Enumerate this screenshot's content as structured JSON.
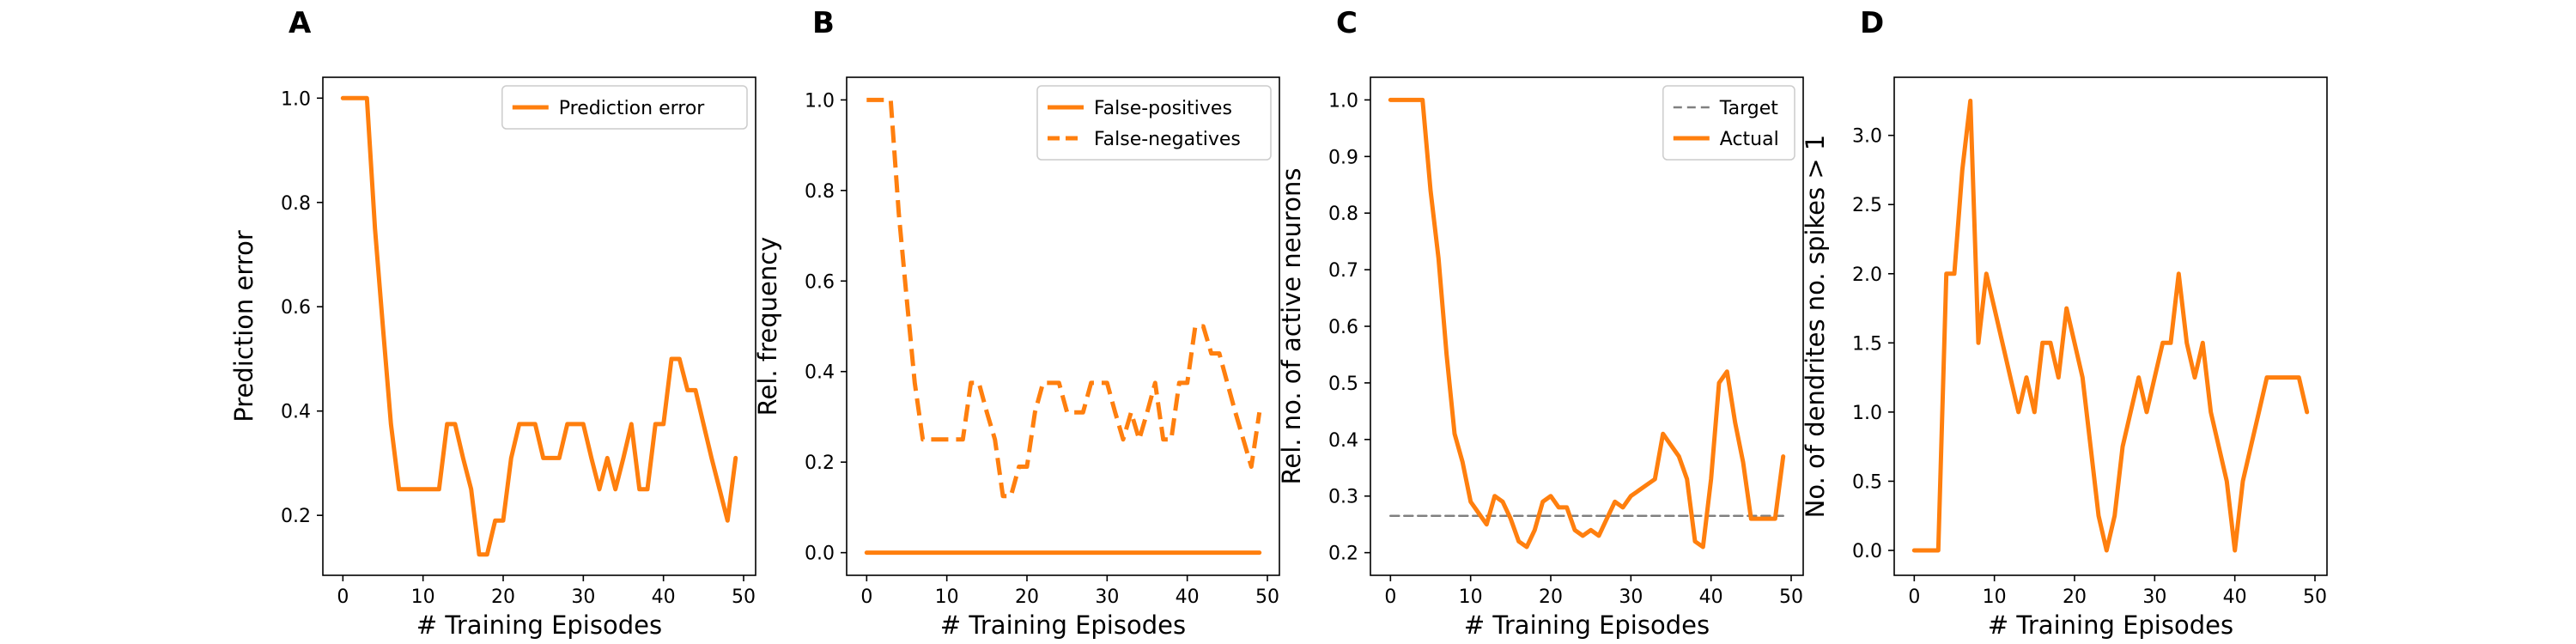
{
  "colors": {
    "series": "#ff7f0e",
    "target": "#808080",
    "axis": "#000000",
    "legend_border": "#cccccc"
  },
  "chart_data": [
    {
      "panel": "A",
      "type": "line",
      "xlabel": "# Training Episodes",
      "ylabel": "Prediction error",
      "xlim": [
        -2.5,
        51.5
      ],
      "ylim": [
        0.085,
        1.04
      ],
      "xticks": [
        0,
        10,
        20,
        30,
        40,
        50
      ],
      "yticks": [
        0.2,
        0.4,
        0.6,
        0.8,
        1.0
      ],
      "ytick_format": 1,
      "legend": "top-right",
      "series": [
        {
          "name": "Prediction error",
          "style": "solid",
          "x": [
            0,
            1,
            2,
            3,
            4,
            5,
            6,
            7,
            8,
            9,
            10,
            11,
            12,
            13,
            14,
            15,
            16,
            17,
            18,
            19,
            20,
            21,
            22,
            23,
            24,
            25,
            26,
            27,
            28,
            29,
            30,
            31,
            32,
            33,
            34,
            35,
            36,
            37,
            38,
            39,
            40,
            41,
            42,
            43,
            44,
            45,
            46,
            47,
            48,
            49
          ],
          "values": [
            1.0,
            1.0,
            1.0,
            1.0,
            0.75,
            0.56,
            0.375,
            0.25,
            0.25,
            0.25,
            0.25,
            0.25,
            0.25,
            0.375,
            0.375,
            0.31,
            0.25,
            0.125,
            0.125,
            0.19,
            0.19,
            0.31,
            0.375,
            0.375,
            0.375,
            0.31,
            0.31,
            0.31,
            0.375,
            0.375,
            0.375,
            0.31,
            0.25,
            0.31,
            0.25,
            0.31,
            0.375,
            0.25,
            0.25,
            0.375,
            0.375,
            0.5,
            0.5,
            0.44,
            0.44,
            0.375,
            0.31,
            0.25,
            0.19,
            0.31
          ]
        }
      ]
    },
    {
      "panel": "B",
      "type": "line",
      "xlabel": "# Training Episodes",
      "ylabel": "Rel. frequency",
      "xlim": [
        -2.5,
        51.5
      ],
      "ylim": [
        -0.05,
        1.05
      ],
      "xticks": [
        0,
        10,
        20,
        30,
        40,
        50
      ],
      "yticks": [
        0.0,
        0.2,
        0.4,
        0.6,
        0.8,
        1.0
      ],
      "ytick_format": 1,
      "legend": "top-right",
      "series": [
        {
          "name": "False-positives",
          "style": "solid",
          "x": [
            0,
            1,
            2,
            3,
            4,
            5,
            6,
            7,
            8,
            9,
            10,
            11,
            12,
            13,
            14,
            15,
            16,
            17,
            18,
            19,
            20,
            21,
            22,
            23,
            24,
            25,
            26,
            27,
            28,
            29,
            30,
            31,
            32,
            33,
            34,
            35,
            36,
            37,
            38,
            39,
            40,
            41,
            42,
            43,
            44,
            45,
            46,
            47,
            48,
            49
          ],
          "values": [
            0,
            0,
            0,
            0,
            0,
            0,
            0,
            0,
            0,
            0,
            0,
            0,
            0,
            0,
            0,
            0,
            0,
            0,
            0,
            0,
            0,
            0,
            0,
            0,
            0,
            0,
            0,
            0,
            0,
            0,
            0,
            0,
            0,
            0,
            0,
            0,
            0,
            0,
            0,
            0,
            0,
            0,
            0,
            0,
            0,
            0,
            0,
            0,
            0,
            0
          ]
        },
        {
          "name": "False-negatives",
          "style": "dashed",
          "x": [
            0,
            1,
            2,
            3,
            4,
            5,
            6,
            7,
            8,
            9,
            10,
            11,
            12,
            13,
            14,
            15,
            16,
            17,
            18,
            19,
            20,
            21,
            22,
            23,
            24,
            25,
            26,
            27,
            28,
            29,
            30,
            31,
            32,
            33,
            34,
            35,
            36,
            37,
            38,
            39,
            40,
            41,
            42,
            43,
            44,
            45,
            46,
            47,
            48,
            49
          ],
          "values": [
            1.0,
            1.0,
            1.0,
            1.0,
            0.75,
            0.56,
            0.375,
            0.25,
            0.25,
            0.25,
            0.25,
            0.25,
            0.25,
            0.375,
            0.375,
            0.31,
            0.25,
            0.125,
            0.125,
            0.19,
            0.19,
            0.31,
            0.375,
            0.375,
            0.375,
            0.31,
            0.31,
            0.31,
            0.375,
            0.375,
            0.375,
            0.31,
            0.25,
            0.31,
            0.25,
            0.31,
            0.375,
            0.25,
            0.25,
            0.375,
            0.375,
            0.5,
            0.5,
            0.44,
            0.44,
            0.375,
            0.31,
            0.25,
            0.19,
            0.31
          ]
        }
      ]
    },
    {
      "panel": "C",
      "type": "line",
      "xlabel": "# Training Episodes",
      "ylabel": "Rel. no. of active neurons",
      "xlim": [
        -2.5,
        51.5
      ],
      "ylim": [
        0.16,
        1.04
      ],
      "xticks": [
        0,
        10,
        20,
        30,
        40,
        50
      ],
      "yticks": [
        0.2,
        0.3,
        0.4,
        0.5,
        0.6,
        0.7,
        0.8,
        0.9,
        1.0
      ],
      "ytick_format": 1,
      "legend": "top-right",
      "series": [
        {
          "name": "Target",
          "style": "dashed-thin",
          "x": [
            0,
            49
          ],
          "values": [
            0.265,
            0.265
          ]
        },
        {
          "name": "Actual",
          "style": "solid",
          "x": [
            0,
            1,
            2,
            3,
            4,
            5,
            6,
            7,
            8,
            9,
            10,
            11,
            12,
            13,
            14,
            15,
            16,
            17,
            18,
            19,
            20,
            21,
            22,
            23,
            24,
            25,
            26,
            27,
            28,
            29,
            30,
            31,
            32,
            33,
            34,
            35,
            36,
            37,
            38,
            39,
            40,
            41,
            42,
            43,
            44,
            45,
            46,
            47,
            48,
            49
          ],
          "values": [
            1.0,
            1.0,
            1.0,
            1.0,
            1.0,
            0.84,
            0.72,
            0.55,
            0.41,
            0.36,
            0.29,
            0.27,
            0.25,
            0.3,
            0.29,
            0.26,
            0.22,
            0.21,
            0.24,
            0.29,
            0.3,
            0.28,
            0.28,
            0.24,
            0.23,
            0.24,
            0.23,
            0.26,
            0.29,
            0.28,
            0.3,
            0.31,
            0.32,
            0.33,
            0.41,
            0.39,
            0.37,
            0.33,
            0.22,
            0.21,
            0.33,
            0.5,
            0.52,
            0.43,
            0.36,
            0.26,
            0.26,
            0.26,
            0.26,
            0.37
          ]
        }
      ]
    },
    {
      "panel": "D",
      "type": "line",
      "xlabel": "# Training Episodes",
      "ylabel": "No. of dendrites no. spikes > 1",
      "xlim": [
        -2.5,
        51.5
      ],
      "ylim": [
        -0.18,
        3.42
      ],
      "xticks": [
        0,
        10,
        20,
        30,
        40,
        50
      ],
      "yticks": [
        0.0,
        0.5,
        1.0,
        1.5,
        2.0,
        2.5,
        3.0
      ],
      "ytick_format": 1,
      "legend": "none",
      "series": [
        {
          "style": "solid",
          "x": [
            0,
            1,
            2,
            3,
            4,
            5,
            6,
            7,
            8,
            9,
            10,
            11,
            12,
            13,
            14,
            15,
            16,
            17,
            18,
            19,
            20,
            21,
            22,
            23,
            24,
            25,
            26,
            27,
            28,
            29,
            30,
            31,
            32,
            33,
            34,
            35,
            36,
            37,
            38,
            39,
            40,
            41,
            42,
            43,
            44,
            45,
            46,
            47,
            48,
            49
          ],
          "values": [
            0,
            0,
            0,
            0,
            2.0,
            2.0,
            2.75,
            3.25,
            1.5,
            2.0,
            1.75,
            1.5,
            1.25,
            1.0,
            1.25,
            1.0,
            1.5,
            1.5,
            1.25,
            1.75,
            1.5,
            1.25,
            0.75,
            0.25,
            0.0,
            0.25,
            0.75,
            1.0,
            1.25,
            1.0,
            1.25,
            1.5,
            1.5,
            2.0,
            1.5,
            1.25,
            1.5,
            1.0,
            0.75,
            0.5,
            0.0,
            0.5,
            0.75,
            1.0,
            1.25,
            1.25,
            1.25,
            1.25,
            1.25,
            1.0
          ]
        }
      ]
    }
  ]
}
